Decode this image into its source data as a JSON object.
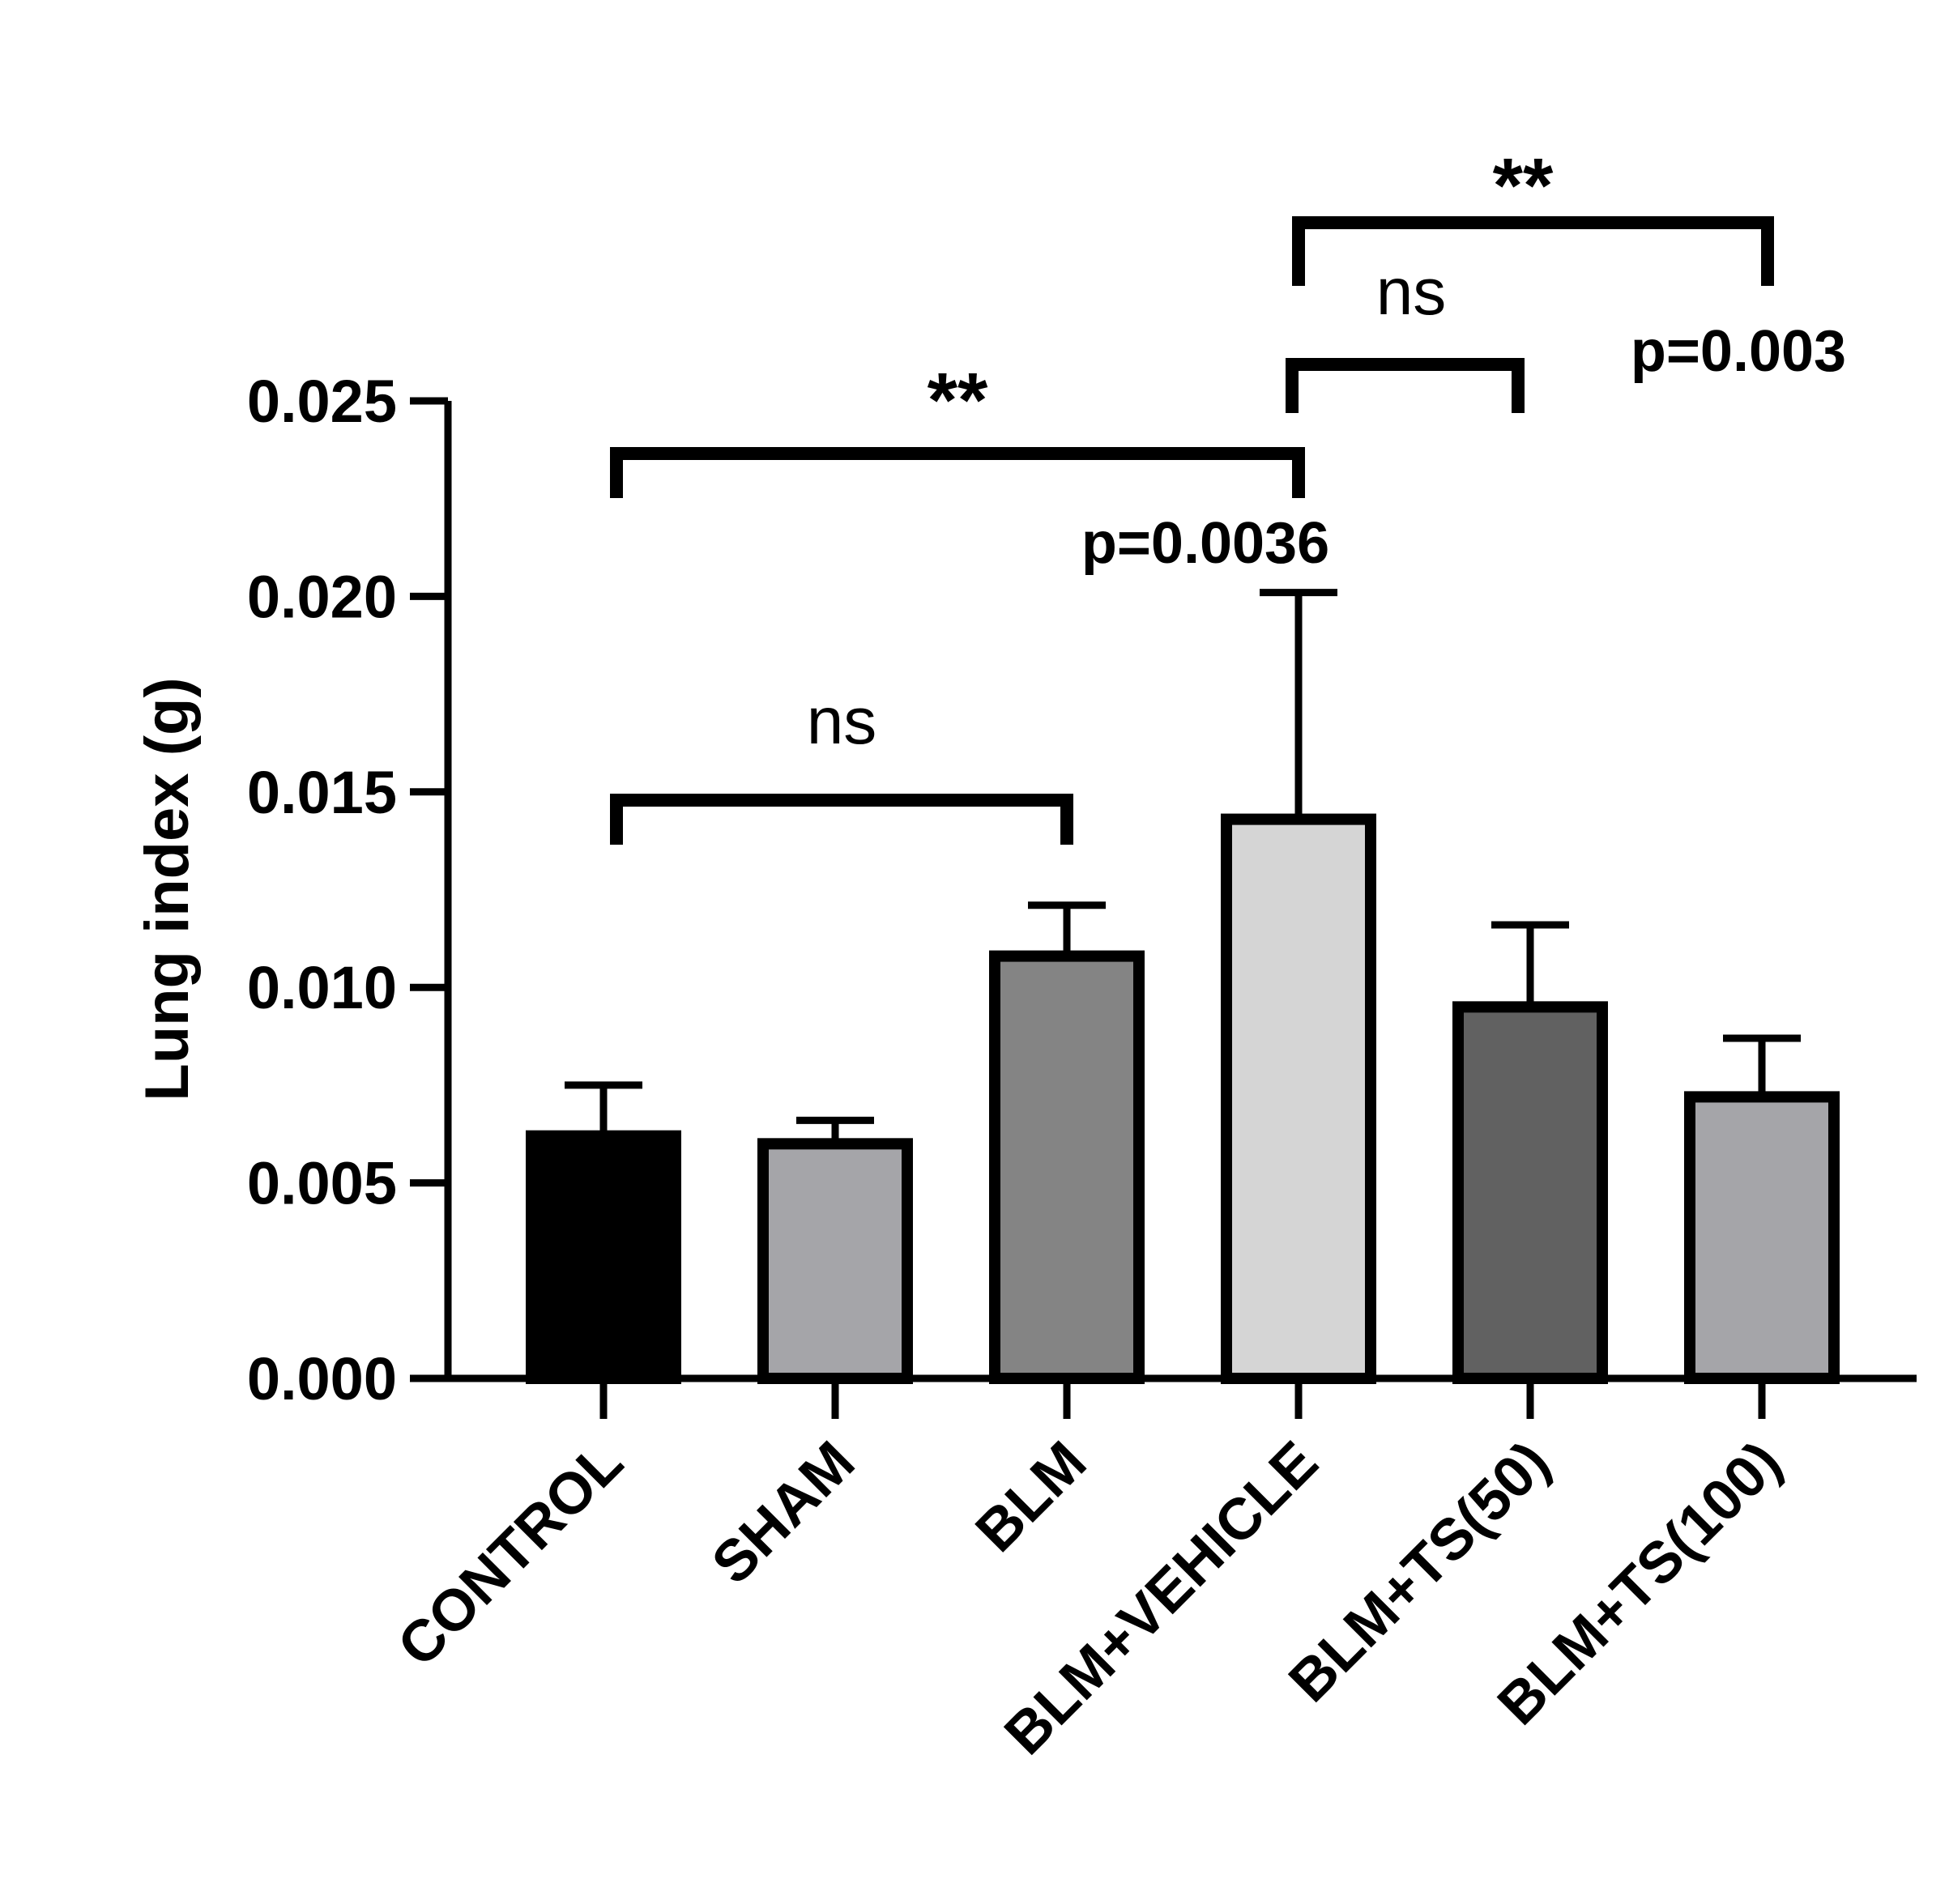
{
  "chart_data": {
    "type": "bar",
    "title": "",
    "xlabel": "",
    "ylabel": "Lung index (g)",
    "ylim": [
      0,
      0.025
    ],
    "yticks": [
      "0.000",
      "0.005",
      "0.010",
      "0.015",
      "0.020",
      "0.025"
    ],
    "categories": [
      "CONTROL",
      "SHAM",
      "BLM",
      "BLM+VEHICLE",
      "BLM+TS(50)",
      "BLM+TS(100)"
    ],
    "values": [
      0.0062,
      0.006,
      0.0108,
      0.0143,
      0.0095,
      0.0072
    ],
    "errors": [
      0.0013,
      0.0006,
      0.0013,
      0.0058,
      0.0021,
      0.0015
    ],
    "bar_colors": [
      "#000000",
      "#a5a5a9",
      "#848484",
      "#d5d5d5",
      "#616161",
      "#a5a5a9"
    ],
    "grid": false,
    "legend": "none",
    "significance": [
      {
        "from": 0,
        "to": 2,
        "label": "ns",
        "p_label": ""
      },
      {
        "from": 0,
        "to": 3,
        "label": "**",
        "p_label": "p=0.0036"
      },
      {
        "from": 3,
        "to": 4,
        "label": "ns",
        "p_label": ""
      },
      {
        "from": 3,
        "to": 5,
        "label": "**",
        "p_label": "p=0.003"
      }
    ]
  }
}
